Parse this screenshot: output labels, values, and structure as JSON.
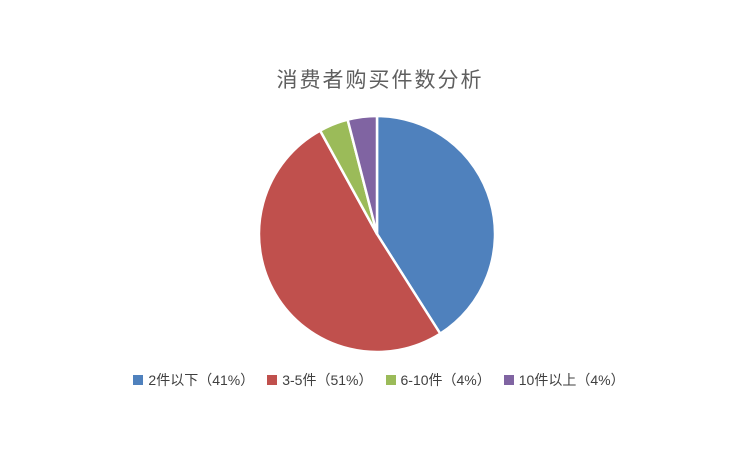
{
  "title": "消费者购买件数分析",
  "chart_data": {
    "type": "pie",
    "title": "消费者购买件数分析",
    "start_angle_deg": 0,
    "direction": "clockwise",
    "legend_position": "bottom",
    "categories": [
      "2件以下",
      "3-5件",
      "6-10件",
      "10件以上"
    ],
    "values": [
      41,
      51,
      4,
      4
    ],
    "unit": "%",
    "slices": [
      {
        "label": "2件以下",
        "percent": 41,
        "legend_label": "2件以下（41%）",
        "color": "#4F81BD"
      },
      {
        "label": "3-5件",
        "percent": 51,
        "legend_label": "3-5件（51%）",
        "color": "#C0504D"
      },
      {
        "label": "6-10件",
        "percent": 4,
        "legend_label": "6-10件（4%）",
        "color": "#9BBB59"
      },
      {
        "label": "10件以上",
        "percent": 4,
        "legend_label": "10件以上（4%）",
        "color": "#8064A2"
      }
    ]
  },
  "colors": {
    "background": "#FFFFFF",
    "title_text": "#5F5F5F",
    "legend_text": "#3F3F3F",
    "slice_border": "#FFFFFF"
  }
}
